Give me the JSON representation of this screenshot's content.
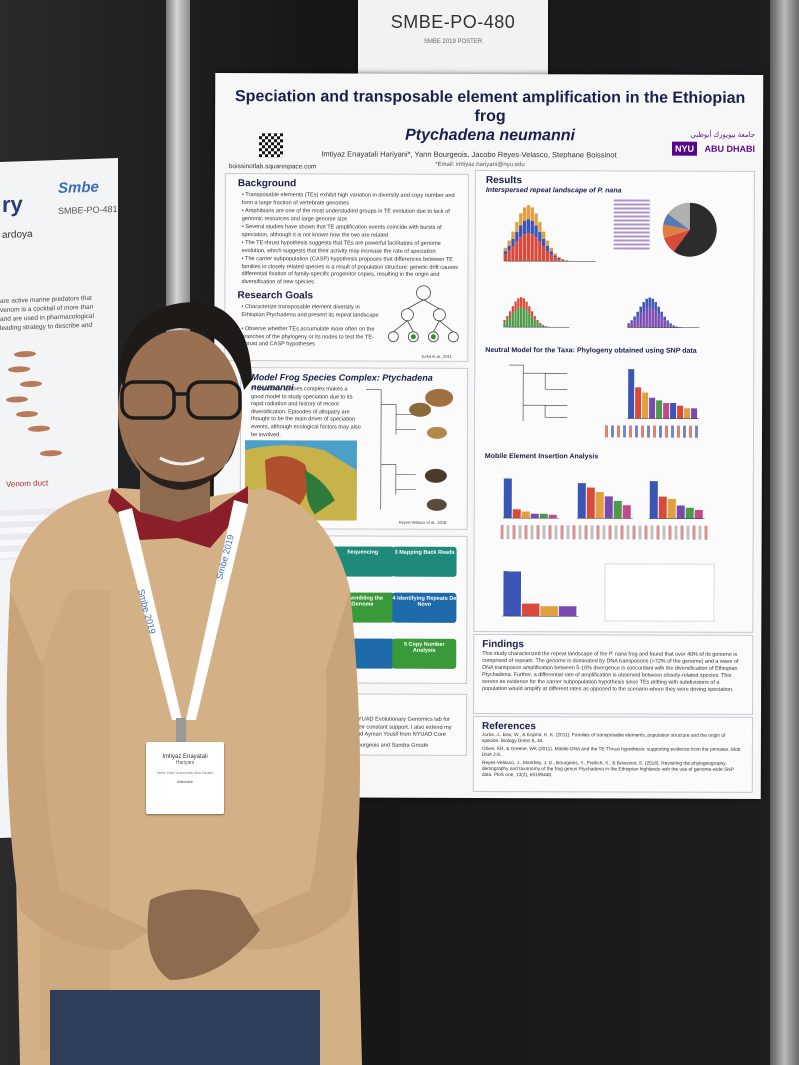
{
  "sign": {
    "code": "SMBE-PO-480",
    "subtitle": "SMBE 2019 POSTER"
  },
  "left_poster": {
    "title_fragment": "ry",
    "conference_logo": "Smbe",
    "code": "SMBE-PO-481",
    "author_fragment": "ardoya",
    "body_lines": [
      "are active marine predators that",
      "venom is a cocktail of more than",
      "and are used in pharmacological",
      "leading strategy to describe and"
    ],
    "venom_label": "Venom duct"
  },
  "poster": {
    "title_line1": "Speciation and transposable element amplification in the Ethiopian frog",
    "title_line2": "Ptychadena neumanni",
    "authors": "Imtiyaz Enayatali Hariyani*, Yann Bourgeois, Jacobo Reyes-Velasco, Stephane Boissinot",
    "email": "*Email: imtiyaz.hariyani@nyu.edu",
    "university_logo": {
      "short": "NYU",
      "campus": "ABU DHABI",
      "arabic": "جامعة نيويورك أبوظبي",
      "color": "#57068c"
    },
    "website": "boissinotlab.squarespace.com",
    "background": {
      "title": "Background",
      "bullets": [
        "Transposable elements (TEs) exhibit high variation in diversity and copy number and form a large fraction of vertebrate genomes",
        "Amphibians are one of the most understudied groups in TE evolution due to lack of genomic resources and large genome size",
        "Several studies have shown that TE amplification events coincide with bursts of speciation, although it is not known how the two are related",
        "The TE-thrust hypothesis suggests that TEs are powerful facilitators of genome evolution, which suggests that their activity may increase the rate of speciation",
        "The carrier subpopulation (CASP) hypothesis proposes that differences between TE families in closely related species is a result of population structure: genetic drift causes differential fixation of family-specific progenitor copies, resulting in the origin and diversification of new species"
      ]
    },
    "research_goals": {
      "title": "Research Goals",
      "bullets": [
        "Characterize transposable element diversity in Ethiopian Ptychadena and present its repeat landscape",
        "Observe whether TEs accumulate more often on the branches of the phylogeny or its nodes to test the TE-Thrust and CASP hypotheses"
      ],
      "citation": "Jurka et al., 2011"
    },
    "model_species": {
      "title": "Model Frog Species Complex: Ptychadena neumanni",
      "text": "P. neumanni species complex makes a good model to study speciation due to its rapid radiation and history of recent diversification. Episodes of allopatry are thought to be the main driver of speciation events, although ecological factors may also be involved.",
      "citation": "Reyes-Velasco et al., 2018",
      "map_colors": [
        "#2f7a3a",
        "#c8b24a",
        "#b0502d",
        "#4aa0c8"
      ]
    },
    "methods": {
      "steps": [
        {
          "num": "",
          "label": "Sequencing",
          "color": "#1f8a7a"
        },
        {
          "num": "3",
          "label": "Mapping Back Reads",
          "color": "#1f8a7a"
        },
        {
          "num": "",
          "label": "Assembling the Genome",
          "color": "#3a9a3a"
        },
        {
          "num": "4",
          "label": "Identifying Repeats De Novo",
          "color": "#1f6aa8"
        },
        {
          "num": "",
          "label": "",
          "color": "#1f6aa8"
        },
        {
          "num": "5",
          "label": "Copy Number Analysis",
          "color": "#3a9a3a"
        }
      ]
    },
    "acknowledgements": {
      "text": "NYUAD Evolutionary Genomics lab for their constant support. I also extend my and Ayman Yousif from NYUAD Core",
      "names": "Bourgeois and Sandra Groute"
    },
    "results": {
      "title": "Results",
      "landscape_title": "Interspersed repeat landscape of P. nana",
      "phylo_title": "Neutral Model for the Taxa: Phylogeny obtained using SNP data",
      "mei_title": "Mobile Element Insertion Analysis",
      "series_colors": [
        "#3a55b5",
        "#d94a3a",
        "#e0a040",
        "#7a4ab0",
        "#4a9a4a",
        "#c04a8a"
      ],
      "pie_colors": [
        "#2c2c2c",
        "#d94a3a",
        "#e08040",
        "#5a7ab5",
        "#b0b0b0"
      ]
    },
    "findings": {
      "title": "Findings",
      "text": "This study characterized the repeat landscape of the P. nana frog and found that over 40% of its genome is comprised of repeats. The genome is dominated by DNA transposons (>72% of the genome) and a wave of DNA transposon amplification between 5-10% divergence is concordant with the diversification of Ethiopian Ptychadena. Further, a differential rate of amplification is observed between closely-related species. This serves as evidence for the carrier subpopulation hypothesis since TEs drifting with subdivisions of a population would amplify at different rates as opposed to the scenario where they were driving speciation."
    },
    "references": {
      "title": "References",
      "items": [
        "Jurka, J., Bao, W., & Kojima, K. K. (2011). Families of transposable elements, population structure and the origin of species. Biology Direct 6, 44.",
        "Oliver, KR, & Greene, WK (2011). Mobile DNA and the TE-Thrust hypothesis: supporting evidence from the primates. Mob DNA 2:8.",
        "Reyes-Velasco, J., Manthey, J. D., Bourgeois, Y., Freilich, X., & Boissinot, S. (2018). Revisiting the phylogeography, demography and taxonomy of the frog genus Ptychadena in the Ethiopian highlands with the use of genome-wide SNP data. PloS one, 13(2), e0190440."
      ]
    }
  },
  "badge": {
    "lanyard_text": "Smbe 2019",
    "name": "Imtiyaz Enayatali",
    "surname": "Hariyani",
    "affiliation": "New York University Abu Dhabi",
    "role": "Attendee"
  },
  "colors": {
    "sweater": "#d6b489",
    "collar": "#8a1f2a",
    "lanyard": "#ffffff",
    "lanyard_text": "#3a6fb5"
  }
}
